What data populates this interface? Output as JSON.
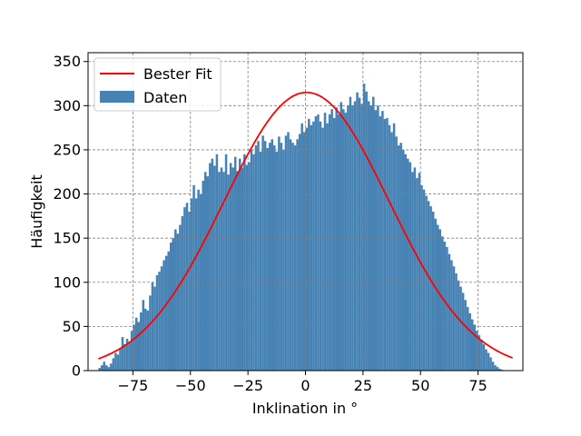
{
  "chart_data": {
    "type": "bar",
    "title": "",
    "xlabel": "Inklination in °",
    "ylabel": "Häufigkeit",
    "xlim": [
      -94.5,
      94.5
    ],
    "ylim": [
      0,
      360
    ],
    "grid": true,
    "grid_style": "dashed",
    "legend_position": "top-left",
    "x_ticks": [
      -75,
      -50,
      -25,
      0,
      25,
      50,
      75
    ],
    "x_tick_labels": [
      "−75",
      "−50",
      "−25",
      "0",
      "25",
      "50",
      "75"
    ],
    "y_ticks": [
      0,
      50,
      100,
      150,
      200,
      250,
      300,
      350
    ],
    "y_tick_labels": [
      "0",
      "50",
      "100",
      "150",
      "200",
      "250",
      "300",
      "350"
    ],
    "series": [
      {
        "name": "Daten",
        "kind": "histogram",
        "color": "#4682b4",
        "bin_width": 1,
        "bin_start": -90,
        "values": [
          3,
          6,
          10,
          6,
          4,
          8,
          14,
          20,
          18,
          25,
          38,
          30,
          36,
          32,
          45,
          52,
          60,
          55,
          66,
          80,
          70,
          68,
          85,
          100,
          95,
          108,
          112,
          118,
          125,
          130,
          135,
          145,
          150,
          160,
          155,
          165,
          175,
          185,
          190,
          180,
          195,
          210,
          195,
          205,
          200,
          215,
          225,
          220,
          235,
          240,
          232,
          245,
          225,
          230,
          225,
          245,
          222,
          235,
          230,
          242,
          226,
          240,
          230,
          245,
          233,
          236,
          250,
          245,
          255,
          260,
          248,
          266,
          260,
          252,
          258,
          262,
          255,
          248,
          265,
          258,
          250,
          266,
          270,
          262,
          258,
          255,
          262,
          268,
          280,
          270,
          275,
          285,
          278,
          282,
          288,
          290,
          282,
          275,
          292,
          280,
          290,
          296,
          286,
          298,
          290,
          304,
          296,
          292,
          300,
          310,
          300,
          305,
          315,
          309,
          302,
          325,
          316,
          305,
          300,
          310,
          295,
          300,
          288,
          294,
          285,
          286,
          278,
          270,
          280,
          265,
          255,
          258,
          250,
          245,
          240,
          236,
          225,
          230,
          218,
          224,
          210,
          205,
          198,
          192,
          186,
          180,
          172,
          165,
          160,
          152,
          146,
          140,
          132,
          125,
          118,
          110,
          102,
          95,
          88,
          80,
          72,
          65,
          58,
          52,
          45,
          40,
          35,
          30,
          24,
          20,
          15,
          10,
          6,
          4,
          2,
          1,
          0
        ]
      },
      {
        "name": "Bester Fit",
        "kind": "gaussian",
        "color": "#ff0000",
        "amplitude": 315,
        "mean": 0.5,
        "sigma": 36,
        "x_range": [
          -90,
          90
        ]
      }
    ]
  }
}
